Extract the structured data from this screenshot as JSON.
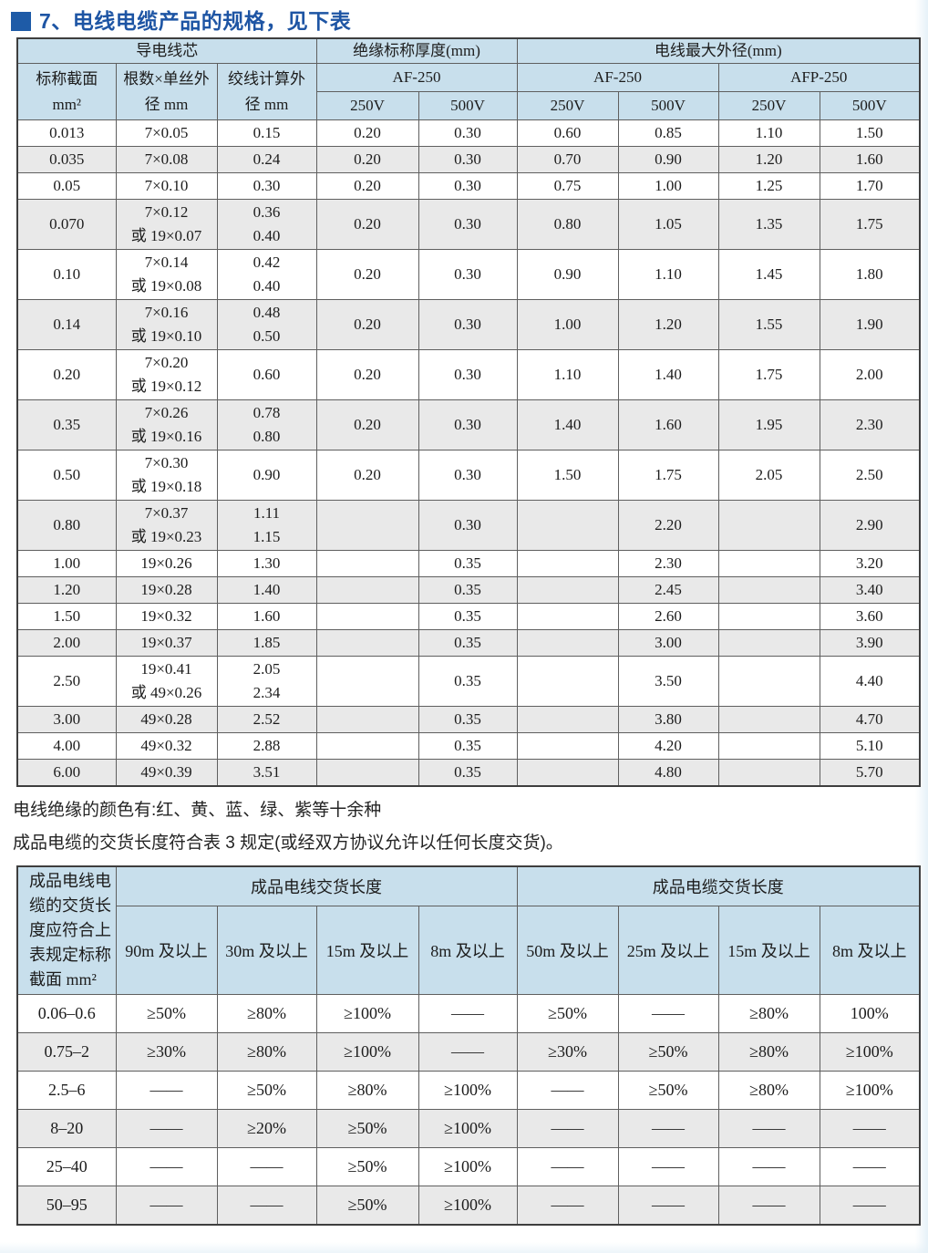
{
  "page": {
    "title": "7、电线电缆产品的规格，见下表"
  },
  "colors": {
    "accent_blue": "#1e55a4",
    "table_header_bg": "#c8dfec",
    "alt_row_bg": "#e9e9e9",
    "border": "#5f5f5f"
  },
  "table1": {
    "headers": {
      "group_conductor": "导电线芯",
      "group_insulation": "绝缘标称厚度(mm)",
      "group_max_od": "电线最大外径(mm)",
      "col_section": "标称截面\nmm²",
      "col_strands": "根数×单丝外\n径 mm",
      "col_twisted": "绞线计算外\n径 mm",
      "sub_af250_ins": "AF-250",
      "sub_af250_od": "AF-250",
      "sub_afp250_od": "AFP-250",
      "v250": "250V",
      "v500": "500V"
    },
    "rows": [
      [
        "0.013",
        "7×0.05",
        "0.15",
        "0.20",
        "0.30",
        "0.60",
        "0.85",
        "1.10",
        "1.50"
      ],
      [
        "0.035",
        "7×0.08",
        "0.24",
        "0.20",
        "0.30",
        "0.70",
        "0.90",
        "1.20",
        "1.60"
      ],
      [
        "0.05",
        "7×0.10",
        "0.30",
        "0.20",
        "0.30",
        "0.75",
        "1.00",
        "1.25",
        "1.70"
      ],
      [
        "0.070",
        "7×0.12\n或 19×0.07",
        "0.36\n0.40",
        "0.20",
        "0.30",
        "0.80",
        "1.05",
        "1.35",
        "1.75"
      ],
      [
        "0.10",
        "7×0.14\n或 19×0.08",
        "0.42\n0.40",
        "0.20",
        "0.30",
        "0.90",
        "1.10",
        "1.45",
        "1.80"
      ],
      [
        "0.14",
        "7×0.16\n或 19×0.10",
        "0.48\n0.50",
        "0.20",
        "0.30",
        "1.00",
        "1.20",
        "1.55",
        "1.90"
      ],
      [
        "0.20",
        "7×0.20\n或 19×0.12",
        "0.60",
        "0.20",
        "0.30",
        "1.10",
        "1.40",
        "1.75",
        "2.00"
      ],
      [
        "0.35",
        "7×0.26\n或 19×0.16",
        "0.78\n0.80",
        "0.20",
        "0.30",
        "1.40",
        "1.60",
        "1.95",
        "2.30"
      ],
      [
        "0.50",
        "7×0.30\n或 19×0.18",
        "0.90",
        "0.20",
        "0.30",
        "1.50",
        "1.75",
        "2.05",
        "2.50"
      ],
      [
        "0.80",
        "7×0.37\n或 19×0.23",
        "1.11\n1.15",
        "",
        "0.30",
        "",
        "2.20",
        "",
        "2.90"
      ],
      [
        "1.00",
        "19×0.26",
        "1.30",
        "",
        "0.35",
        "",
        "2.30",
        "",
        "3.20"
      ],
      [
        "1.20",
        "19×0.28",
        "1.40",
        "",
        "0.35",
        "",
        "2.45",
        "",
        "3.40"
      ],
      [
        "1.50",
        "19×0.32",
        "1.60",
        "",
        "0.35",
        "",
        "2.60",
        "",
        "3.60"
      ],
      [
        "2.00",
        "19×0.37",
        "1.85",
        "",
        "0.35",
        "",
        "3.00",
        "",
        "3.90"
      ],
      [
        "2.50",
        "19×0.41\n或 49×0.26",
        "2.05\n2.34",
        "",
        "0.35",
        "",
        "3.50",
        "",
        "4.40"
      ],
      [
        "3.00",
        "49×0.28",
        "2.52",
        "",
        "0.35",
        "",
        "3.80",
        "",
        "4.70"
      ],
      [
        "4.00",
        "49×0.32",
        "2.88",
        "",
        "0.35",
        "",
        "4.20",
        "",
        "5.10"
      ],
      [
        "6.00",
        "49×0.39",
        "3.51",
        "",
        "0.35",
        "",
        "4.80",
        "",
        "5.70"
      ]
    ]
  },
  "notes": {
    "line1": "电线绝缘的颜色有:红、黄、蓝、绿、紫等十余种",
    "line2": "成品电缆的交货长度符合表 3 规定(或经双方协议允许以任何长度交货)。"
  },
  "table2": {
    "corner": "成品电线电\n缆的交货长\n度应符合上\n表规定标称\n截面 mm²",
    "group_wire": "成品电线交货长度",
    "group_cable": "成品电缆交货长度",
    "wire_cols": [
      "90m 及以上",
      "30m 及以上",
      "15m 及以上",
      "8m 及以上"
    ],
    "cable_cols": [
      "50m 及以上",
      "25m 及以上",
      "15m 及以上",
      "8m 及以上"
    ],
    "rows": [
      [
        "0.06–0.6",
        "≥50%",
        "≥80%",
        "≥100%",
        "——",
        "≥50%",
        "——",
        "≥80%",
        "100%"
      ],
      [
        "0.75–2",
        "≥30%",
        "≥80%",
        "≥100%",
        "——",
        "≥30%",
        "≥50%",
        "≥80%",
        "≥100%"
      ],
      [
        "2.5–6",
        "——",
        "≥50%",
        "≥80%",
        "≥100%",
        "——",
        "≥50%",
        "≥80%",
        "≥100%"
      ],
      [
        "8–20",
        "——",
        "≥20%",
        "≥50%",
        "≥100%",
        "——",
        "——",
        "——",
        "——"
      ],
      [
        "25–40",
        "——",
        "——",
        "≥50%",
        "≥100%",
        "——",
        "——",
        "——",
        "——"
      ],
      [
        "50–95",
        "——",
        "——",
        "≥50%",
        "≥100%",
        "——",
        "——",
        "——",
        "——"
      ]
    ]
  }
}
